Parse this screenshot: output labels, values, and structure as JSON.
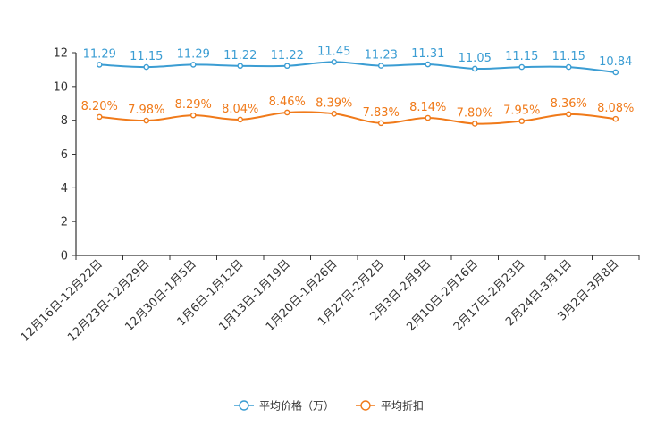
{
  "chart_data": {
    "type": "line",
    "title": "",
    "xlabel": "",
    "ylabel": "",
    "ylim": [
      0,
      12
    ],
    "yticks": [
      0,
      2,
      4,
      6,
      8,
      10,
      12
    ],
    "categories": [
      "12月16日-12月22日",
      "12月23日-12月29日",
      "12月30日-1月5日",
      "1月6日-1月12日",
      "1月13日-1月19日",
      "1月20日-1月26日",
      "1月27日-2月2日",
      "2月3日-2月9日",
      "2月10日-2月16日",
      "2月17日-2月23日",
      "2月24日-3月1日",
      "3月2日-3月8日"
    ],
    "series": [
      {
        "name": "平均价格（万）",
        "color": "#3b9dd3",
        "values": [
          11.29,
          11.15,
          11.29,
          11.22,
          11.22,
          11.45,
          11.23,
          11.31,
          11.05,
          11.15,
          11.15,
          10.84
        ],
        "labels": [
          "11.29",
          "11.15",
          "11.29",
          "11.22",
          "11.22",
          "11.45",
          "11.23",
          "11.31",
          "11.05",
          "11.15",
          "11.15",
          "10.84"
        ]
      },
      {
        "name": "平均折扣",
        "color": "#f07a1a",
        "values": [
          8.2,
          7.98,
          8.29,
          8.04,
          8.46,
          8.39,
          7.83,
          8.14,
          7.8,
          7.95,
          8.36,
          8.08
        ],
        "labels": [
          "8.20%",
          "7.98%",
          "8.29%",
          "8.04%",
          "8.46%",
          "8.39%",
          "7.83%",
          "8.14%",
          "7.80%",
          "7.95%",
          "8.36%",
          "8.08%"
        ]
      }
    ],
    "legend_position": "bottom-center",
    "grid": false
  }
}
